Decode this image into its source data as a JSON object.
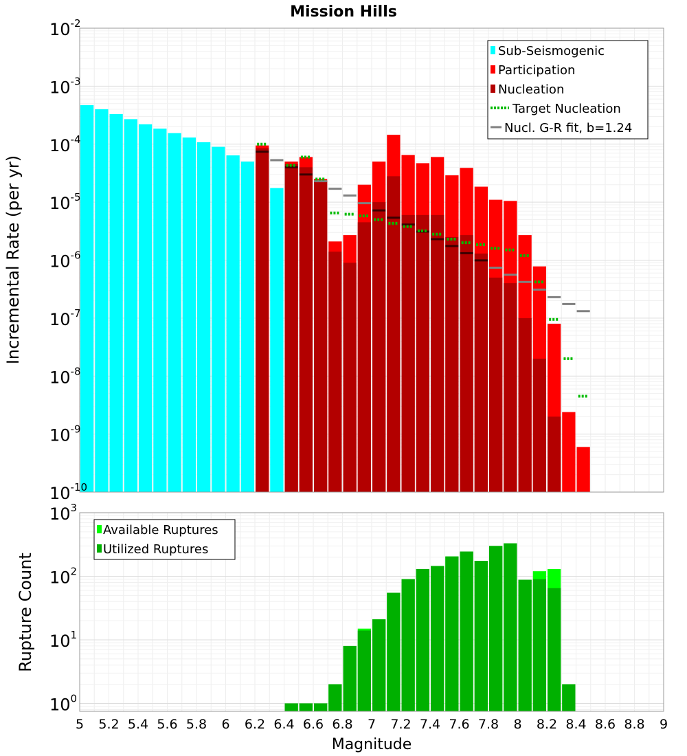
{
  "title": "Mission Hills",
  "x_label": "Magnitude",
  "colors": {
    "sub_seismogenic": "#00ffff",
    "participation": "#ff0000",
    "nucleation": "#b30000",
    "target": "#00bb00",
    "gr_fit": "#808080",
    "gr_fit_dark": "#3a0000",
    "available": "#00ff00",
    "utilized": "#00b000"
  },
  "x_ticks": [
    "5",
    "5.2",
    "5.4",
    "5.6",
    "5.8",
    "6",
    "6.2",
    "6.4",
    "6.6",
    "6.8",
    "7",
    "7.2",
    "7.4",
    "7.6",
    "7.8",
    "8",
    "8.2",
    "8.4",
    "8.6",
    "8.8",
    "9"
  ],
  "chart_data": [
    {
      "type": "bar",
      "title": "Mission Hills",
      "ylabel": "Incremental Rate (per yr)",
      "xlim": [
        5,
        9
      ],
      "y_scale": "log",
      "ylim": [
        1e-10,
        0.01
      ],
      "y_ticks": [
        {
          "base": "10",
          "exp": "-10"
        },
        {
          "base": "10",
          "exp": "-9"
        },
        {
          "base": "10",
          "exp": "-8"
        },
        {
          "base": "10",
          "exp": "-7"
        },
        {
          "base": "10",
          "exp": "-6"
        },
        {
          "base": "10",
          "exp": "-5"
        },
        {
          "base": "10",
          "exp": "-4"
        },
        {
          "base": "10",
          "exp": "-3"
        },
        {
          "base": "10",
          "exp": "-2"
        }
      ],
      "grid": true,
      "legend_position": "top-right",
      "legend": [
        "Sub-Seismogenic",
        "Participation",
        "Nucleation",
        "Target Nucleation",
        "Nucl. G-R fit, b=1.24"
      ],
      "bin_width": 0.1,
      "sub_seismogenic": {
        "x": [
          5.05,
          5.15,
          5.25,
          5.35,
          5.45,
          5.55,
          5.65,
          5.75,
          5.85,
          5.95,
          6.05,
          6.15,
          6.35
        ],
        "values": [
          0.00047,
          0.0004,
          0.00033,
          0.00027,
          0.00022,
          0.000185,
          0.000155,
          0.00013,
          0.000108,
          9e-05,
          6.4e-05,
          5e-05,
          1.75e-05
        ]
      },
      "participation": {
        "x": [
          6.25,
          6.45,
          6.55,
          6.65,
          6.75,
          6.85,
          6.95,
          7.05,
          7.15,
          7.25,
          7.35,
          7.45,
          7.55,
          7.65,
          7.75,
          7.85,
          7.95,
          8.05,
          8.15,
          8.25,
          8.35,
          8.45
        ],
        "values": [
          9.5e-05,
          5e-05,
          6e-05,
          2.5e-05,
          2.1e-06,
          2.7e-06,
          2e-05,
          5e-05,
          0.000145,
          6.5e-05,
          4.7e-05,
          6e-05,
          2.9e-05,
          3.9e-05,
          1.85e-05,
          1.1e-05,
          1.05e-05,
          2.7e-06,
          7.8e-07,
          8e-08,
          2.4e-09,
          6e-10
        ]
      },
      "nucleation": {
        "x": [
          6.25,
          6.45,
          6.55,
          6.65,
          6.75,
          6.85,
          6.95,
          7.05,
          7.15,
          7.25,
          7.35,
          7.45,
          7.55,
          7.65,
          7.75,
          7.85,
          7.95,
          8.05,
          8.15,
          8.25
        ],
        "values": [
          8.5e-05,
          4.5e-05,
          4e-05,
          2.3e-05,
          1.4e-06,
          9e-07,
          4.5e-06,
          1e-05,
          2.8e-05,
          6e-06,
          6e-06,
          6e-06,
          2.5e-06,
          2.7e-06,
          1.3e-06,
          5e-07,
          4e-07,
          1e-07,
          2e-08,
          2e-09
        ]
      },
      "target_nucleation": {
        "x": [
          6.25,
          6.45,
          6.55,
          6.65,
          6.75,
          6.85,
          6.95,
          7.05,
          7.15,
          7.25,
          7.35,
          7.45,
          7.55,
          7.65,
          7.75,
          7.85,
          7.95,
          8.05,
          8.15,
          8.25,
          8.35,
          8.45
        ],
        "values": [
          0.0001,
          4.3e-05,
          6e-05,
          2.5e-05,
          6.5e-06,
          6.2e-06,
          5.8e-06,
          5e-06,
          4.3e-06,
          3.8e-06,
          3.2e-06,
          2.8e-06,
          2.3e-06,
          2e-06,
          1.85e-06,
          1.6e-06,
          1.5e-06,
          1.2e-06,
          4.2e-07,
          9.5e-08,
          2e-08,
          4.5e-09
        ]
      },
      "gr_fit": {
        "x": [
          6.25,
          6.35,
          6.45,
          6.55,
          6.65,
          6.75,
          6.85,
          6.95,
          7.05,
          7.15,
          7.25,
          7.35,
          7.45,
          7.55,
          7.65,
          7.75,
          7.85,
          7.95,
          8.05,
          8.15,
          8.25,
          8.35,
          8.45
        ],
        "values": [
          7.4e-05,
          5.3e-05,
          4e-05,
          3e-05,
          2.3e-05,
          1.7e-05,
          1.3e-05,
          9.6e-06,
          7.2e-06,
          5.4e-06,
          4.1e-06,
          3.1e-06,
          2.3e-06,
          1.75e-06,
          1.32e-06,
          9.9e-07,
          7.4e-07,
          5.6e-07,
          4.2e-07,
          3.1e-07,
          2.3e-07,
          1.75e-07,
          1.32e-07
        ]
      }
    },
    {
      "type": "bar",
      "xlabel": "Magnitude",
      "ylabel": "Rupture Count",
      "xlim": [
        5,
        9
      ],
      "y_scale": "log",
      "ylim": [
        0.75,
        1000
      ],
      "y_ticks": [
        {
          "base": "10",
          "exp": "0"
        },
        {
          "base": "10",
          "exp": "1"
        },
        {
          "base": "10",
          "exp": "2"
        },
        {
          "base": "10",
          "exp": "3"
        }
      ],
      "grid": true,
      "legend_position": "top-left",
      "legend": [
        "Available Ruptures",
        "Utilized Ruptures"
      ],
      "bin_width": 0.1,
      "available": {
        "x": [
          6.45,
          6.55,
          6.65,
          6.75,
          6.85,
          6.95,
          7.05,
          7.15,
          7.25,
          7.35,
          7.45,
          7.55,
          7.65,
          7.75,
          7.85,
          7.95,
          8.05,
          8.15,
          8.25,
          8.35
        ],
        "values": [
          1,
          1,
          1,
          2,
          8,
          15,
          21,
          55,
          90,
          130,
          145,
          205,
          245,
          175,
          300,
          330,
          88,
          120,
          130,
          2
        ]
      },
      "utilized": {
        "x": [
          6.45,
          6.55,
          6.65,
          6.75,
          6.85,
          6.95,
          7.05,
          7.15,
          7.25,
          7.35,
          7.45,
          7.55,
          7.65,
          7.75,
          7.85,
          7.95,
          8.05,
          8.15,
          8.25,
          8.35
        ],
        "values": [
          1,
          1,
          1,
          2,
          8,
          14,
          21,
          55,
          90,
          130,
          145,
          205,
          245,
          175,
          300,
          330,
          88,
          90,
          65,
          2
        ]
      }
    }
  ]
}
